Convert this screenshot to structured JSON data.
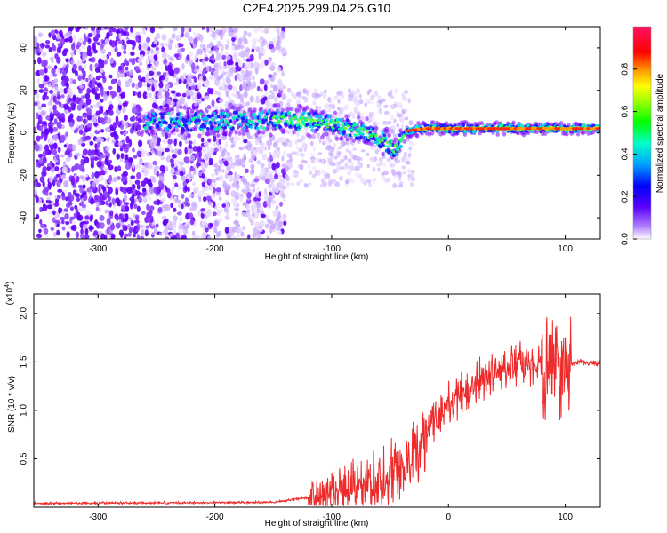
{
  "chart_data": [
    {
      "type": "heatmap",
      "title": "C2E4.2025.299.04.25.G10",
      "xlabel": "Height of straight line (km)",
      "ylabel": "Frequency (Hz)",
      "xlim": [
        -355,
        130
      ],
      "ylim": [
        -50,
        50
      ],
      "xticks": [
        -300,
        -200,
        -100,
        0,
        100
      ],
      "yticks": [
        -40,
        -20,
        0,
        20,
        40
      ],
      "colorbar": {
        "label": "Normalized spectral amplitude",
        "range": [
          0,
          1
        ],
        "ticks": [
          0.0,
          0.2,
          0.4,
          0.6,
          0.8
        ]
      },
      "ridge": {
        "x": [
          -260,
          -220,
          -180,
          -140,
          -110,
          -90,
          -70,
          -55,
          -45,
          -40,
          -35,
          -20,
          0,
          50,
          100,
          130
        ],
        "y": [
          6,
          5,
          6,
          6,
          5,
          3,
          0,
          -4,
          -8,
          -3,
          1,
          2,
          2,
          2,
          2,
          2
        ]
      }
    },
    {
      "type": "line",
      "xlabel": "Height of straight line (km)",
      "ylabel": "SNR (10 * v/v)",
      "yscale_note": "(x10",
      "yscale_exp": "4",
      "xlim": [
        -355,
        130
      ],
      "ylim": [
        0,
        2.2
      ],
      "xticks": [
        -300,
        -200,
        -100,
        0,
        100
      ],
      "yticks": [
        0.5,
        1.0,
        1.5,
        2.0
      ],
      "envelope": {
        "x": [
          -355,
          -150,
          -110,
          -80,
          -60,
          -40,
          -30,
          -20,
          -10,
          0,
          20,
          40,
          60,
          80,
          90,
          95,
          100,
          110,
          130
        ],
        "y": [
          0.04,
          0.05,
          0.12,
          0.2,
          0.28,
          0.35,
          0.5,
          0.75,
          0.95,
          1.05,
          1.25,
          1.4,
          1.45,
          1.5,
          1.5,
          1.45,
          1.45,
          1.5,
          1.48
        ]
      }
    }
  ]
}
